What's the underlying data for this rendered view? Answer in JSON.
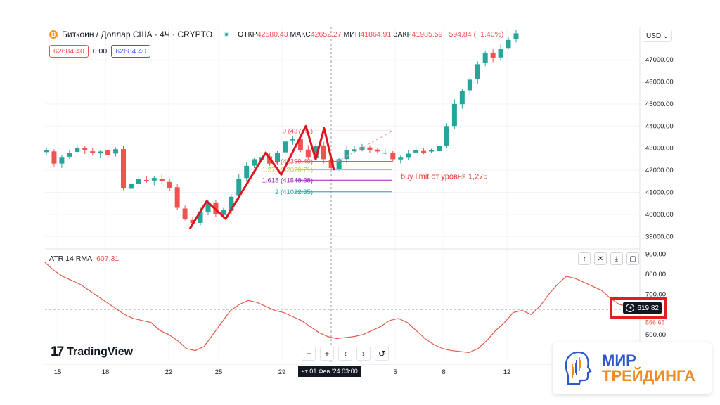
{
  "header": {
    "coin_glyph": "B",
    "symbol": "Биткоин / Доллар США · 4Ч · CRYPTO",
    "ohlc": [
      {
        "k": "ОТКР",
        "v": "42580.43"
      },
      {
        "k": "МАКС",
        "v": "42652.27"
      },
      {
        "k": "МИН",
        "v": "41864.91"
      },
      {
        "k": "ЗАКР",
        "v": "41985.59"
      }
    ],
    "change": "−594.84 (−1.40%)"
  },
  "price_boxes": {
    "sell": "62684.40",
    "spread": "0.00",
    "buy": "62684.40"
  },
  "currency": "USD",
  "atr": {
    "name": "ATR 14 RMA",
    "value": "607.31",
    "current_tag": "619.82",
    "secondary_tag": "566.65"
  },
  "toolbar": {
    "pane_buttons": [
      "↑",
      "✕",
      "⤓",
      "▢"
    ],
    "nav_buttons": [
      "−",
      "+",
      "‹",
      "›",
      "↺"
    ]
  },
  "logo": {
    "mark": "17",
    "text": "TradingView"
  },
  "crosshair_date": "чт 01 Фев '24   03:00",
  "annotation": "buy limit от уровня 1,275",
  "brand": {
    "line1": "МИР",
    "line2": "ТРЕЙДИНГА"
  },
  "colors": {
    "up": "#26a69a",
    "down": "#ef5350",
    "pattern": "#e0141e",
    "atr": "#e45a4a",
    "brand_blue": "#2f59c9",
    "brand_orange": "#f08a23"
  },
  "chart_data": {
    "type": "candlestick",
    "price_axis": {
      "ticks": [
        "47000.00",
        "46000.00",
        "45000.00",
        "44000.00",
        "43000.00",
        "42000.00",
        "41000.00",
        "40000.00",
        "39000.00"
      ],
      "ylim": [
        38500,
        48500
      ]
    },
    "atr_axis": {
      "ticks": [
        "900.00",
        "800.00",
        "700.00",
        "500.00"
      ],
      "ylim": [
        380,
        920
      ]
    },
    "x_ticks": [
      "15",
      "18",
      "22",
      "25",
      "29",
      "5",
      "8",
      "12"
    ],
    "fib_levels": [
      {
        "label": "0 (43776.)",
        "price": 43776
      },
      {
        "label": "1 (42399.40)",
        "price": 42399.4
      },
      {
        "label": "1.275 (42020.71)",
        "price": 42020.71
      },
      {
        "label": "1.618 (41548.38)",
        "price": 41548.38
      },
      {
        "label": "2 (41022.35)",
        "price": 41022.35
      }
    ],
    "close_path": [
      42900,
      42300,
      42600,
      42800,
      43000,
      42900,
      42800,
      42850,
      42700,
      42950,
      41200,
      41400,
      41600,
      41550,
      41650,
      41500,
      41200,
      40300,
      39800,
      39600,
      40100,
      40500,
      40000,
      40200,
      40800,
      41600,
      42200,
      42500,
      42600,
      42300,
      42800,
      43300,
      43400,
      42900,
      42600,
      43100,
      42500,
      42100,
      42500,
      42900,
      42950,
      43050,
      42900,
      42850,
      42800,
      42500,
      42600,
      42750,
      42900,
      42800,
      42900,
      43100,
      44000,
      45000,
      45600,
      46100,
      46800,
      47300,
      47100,
      47500,
      47900,
      48200
    ],
    "atr_path": [
      860,
      820,
      790,
      770,
      750,
      720,
      690,
      660,
      630,
      600,
      580,
      570,
      560,
      520,
      500,
      470,
      430,
      420,
      440,
      500,
      560,
      620,
      650,
      670,
      660,
      640,
      620,
      610,
      590,
      570,
      540,
      510,
      490,
      480,
      485,
      490,
      500,
      520,
      540,
      570,
      580,
      560,
      520,
      480,
      450,
      430,
      420,
      415,
      410,
      430,
      470,
      520,
      560,
      610,
      620,
      600,
      640,
      700,
      750,
      790,
      780,
      760,
      740,
      720,
      680,
      650,
      640,
      620
    ]
  }
}
